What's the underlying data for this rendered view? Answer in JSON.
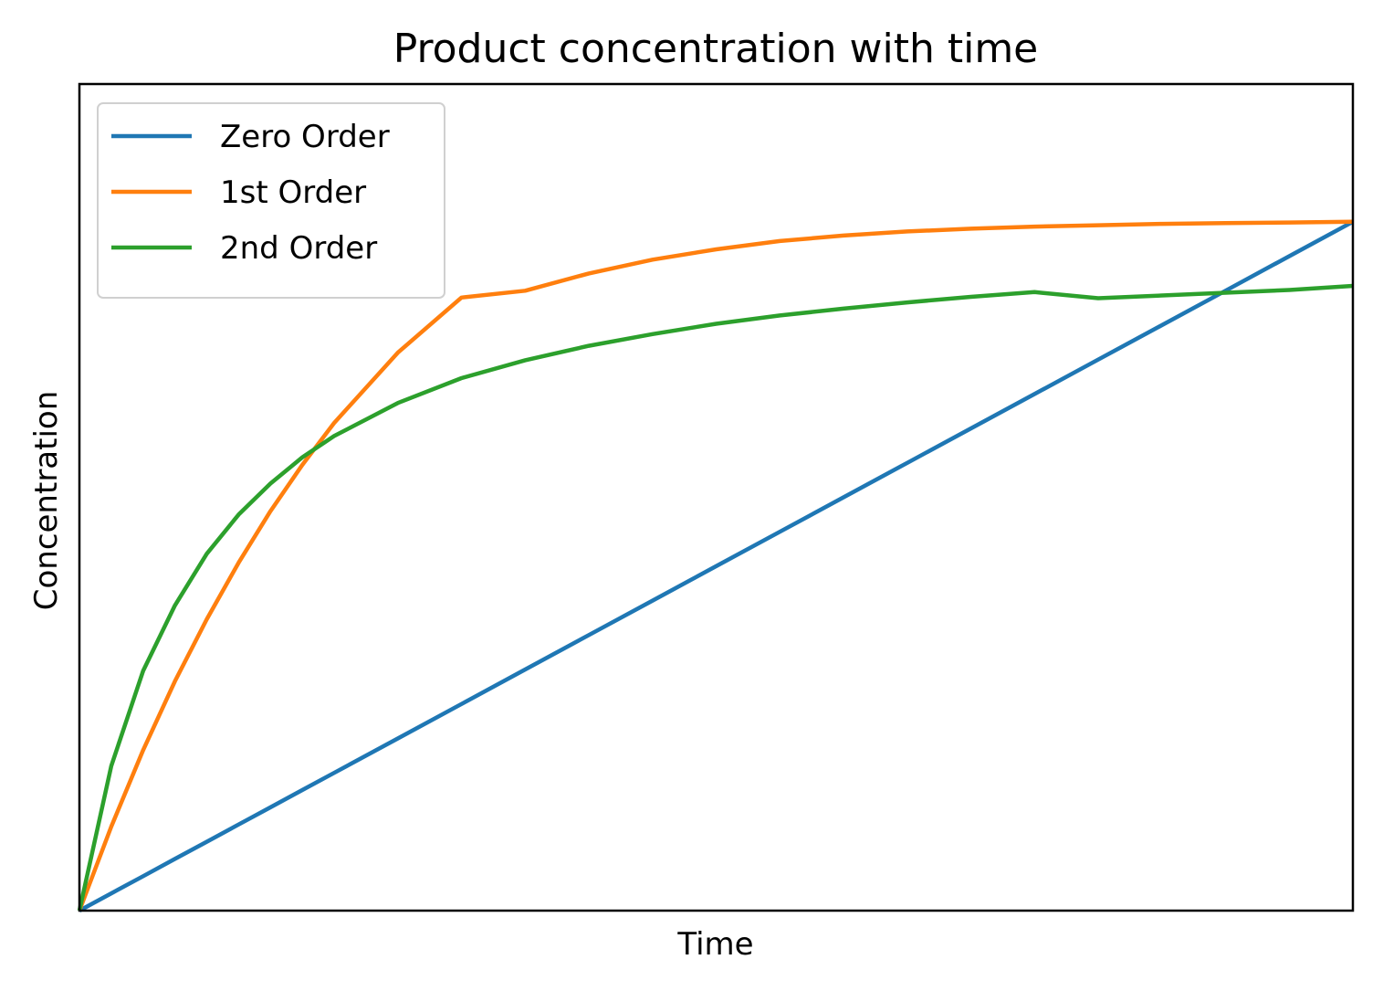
{
  "chart_data": {
    "type": "line",
    "title": "Product concentration with time",
    "xlabel": "Time",
    "ylabel": "Concentration",
    "xlim": [
      0,
      1
    ],
    "ylim": [
      0,
      1.2
    ],
    "x_ticks": [],
    "y_ticks": [],
    "grid": false,
    "legend_position": "top-left",
    "x": [
      0,
      0.025,
      0.05,
      0.075,
      0.1,
      0.125,
      0.15,
      0.175,
      0.2,
      0.25,
      0.3,
      0.35,
      0.4,
      0.45,
      0.5,
      0.55,
      0.6,
      0.65,
      0.7,
      0.75,
      0.8,
      0.85,
      0.9,
      0.95,
      1.0
    ],
    "series": [
      {
        "name": "Zero Order",
        "color": "#1f77b4",
        "values": [
          0,
          0.025,
          0.05,
          0.075,
          0.1,
          0.125,
          0.15,
          0.175,
          0.2,
          0.25,
          0.3,
          0.35,
          0.4,
          0.45,
          0.5,
          0.55,
          0.6,
          0.65,
          0.7,
          0.75,
          0.8,
          0.85,
          0.9,
          0.95,
          1.0
        ]
      },
      {
        "name": "1st Order",
        "color": "#ff7f0e",
        "values": [
          0,
          0.122,
          0.233,
          0.333,
          0.423,
          0.505,
          0.58,
          0.647,
          0.708,
          0.81,
          0.89,
          0.9,
          0.925,
          0.945,
          0.96,
          0.972,
          0.98,
          0.986,
          0.99,
          0.993,
          0.995,
          0.997,
          0.998,
          0.999,
          1.0
        ]
      },
      {
        "name": "2nd Order",
        "color": "#2ca02c",
        "values": [
          0,
          0.21,
          0.348,
          0.443,
          0.518,
          0.575,
          0.62,
          0.658,
          0.689,
          0.737,
          0.773,
          0.799,
          0.82,
          0.837,
          0.852,
          0.864,
          0.874,
          0.883,
          0.891,
          0.898,
          0.889,
          0.893,
          0.897,
          0.901,
          0.907
        ]
      }
    ]
  }
}
